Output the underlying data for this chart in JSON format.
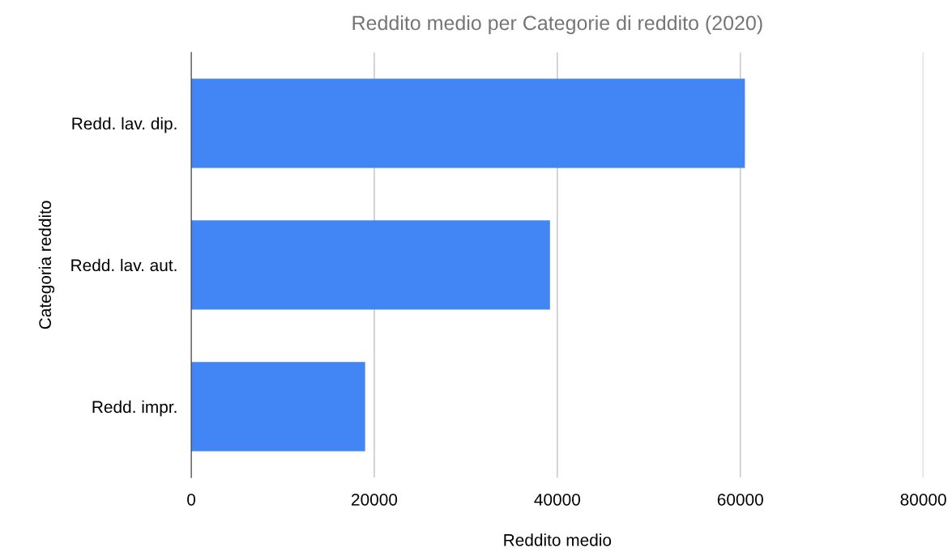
{
  "chart_data": {
    "type": "bar",
    "orientation": "horizontal",
    "title": "Reddito medio per Categorie di reddito (2020)",
    "xlabel": "Reddito medio",
    "ylabel": "Categoria reddito",
    "categories": [
      "Redd. lav. dip.",
      "Redd. lav. aut.",
      "Redd. impr."
    ],
    "series": [
      {
        "color": "#4285f4",
        "values": [
          60500,
          39200,
          19000
        ]
      }
    ],
    "xlim": [
      0,
      80000
    ],
    "xticks": [
      0,
      20000,
      40000,
      60000,
      80000
    ],
    "grid": "x"
  }
}
